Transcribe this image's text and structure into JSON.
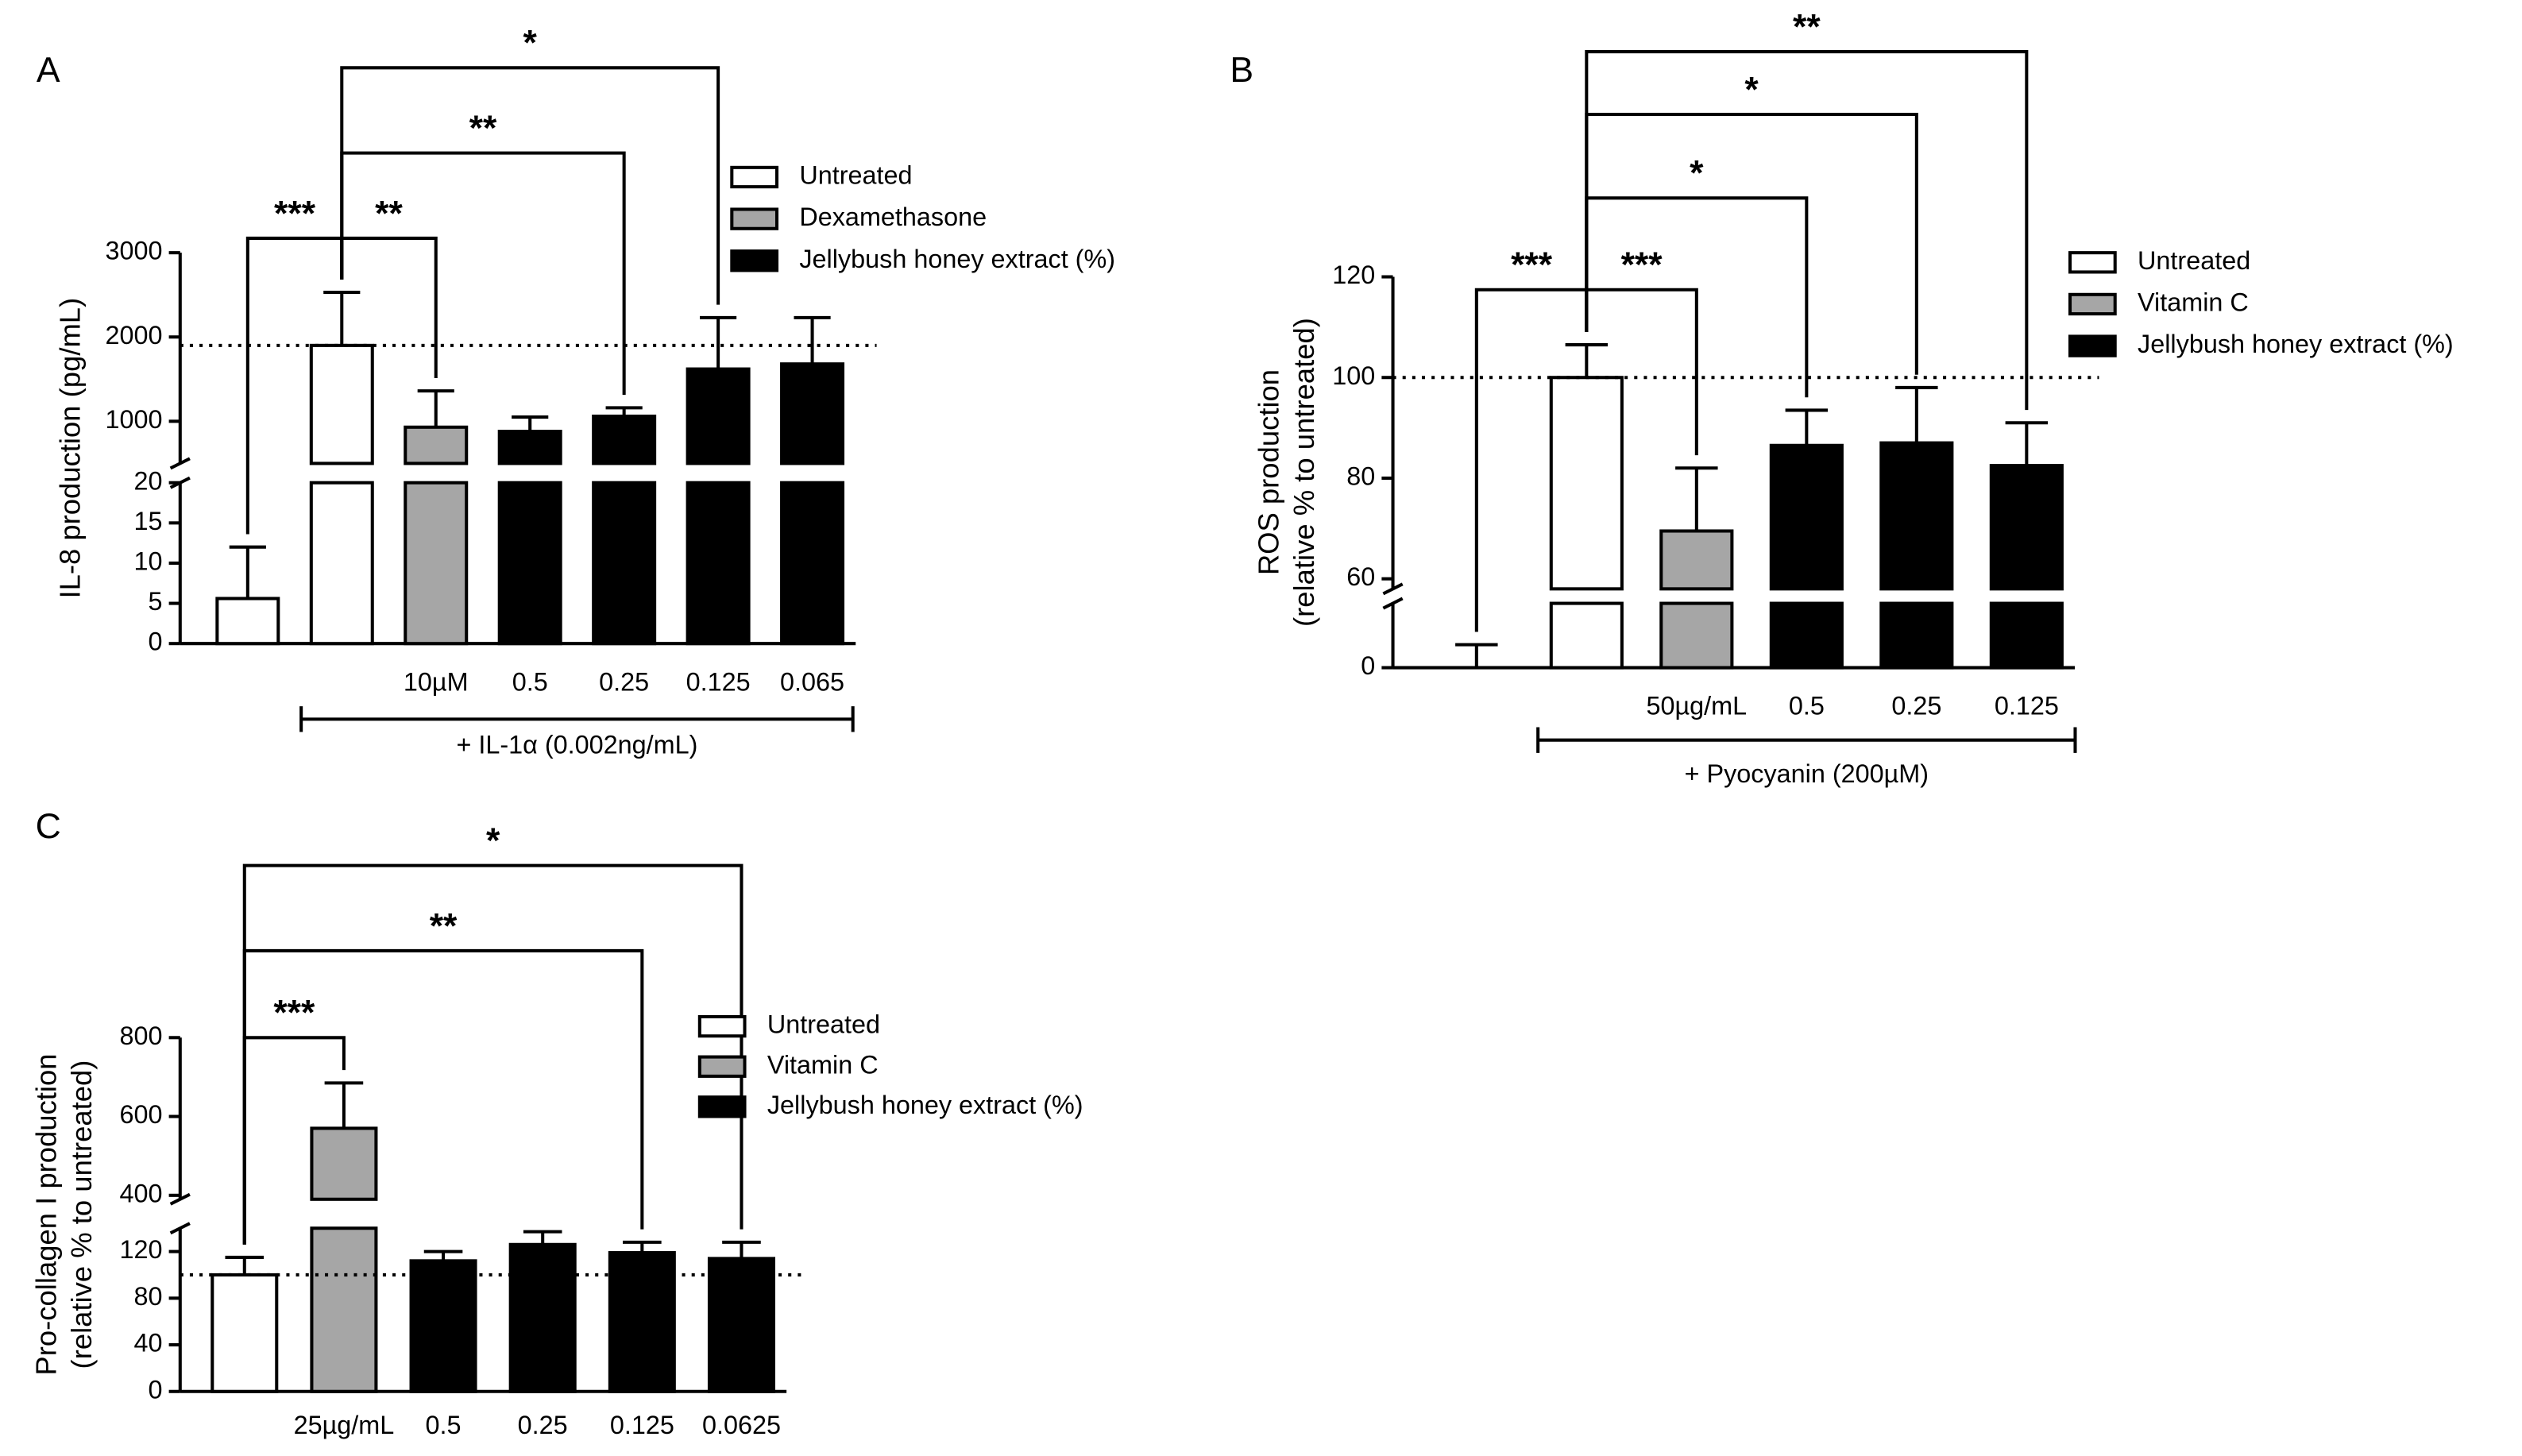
{
  "chart_data": [
    {
      "type": "bar",
      "panel": "A",
      "ylabel": [
        "IL-8 production (pg/mL)"
      ],
      "categories": [
        null,
        null,
        "10µM",
        "0.5",
        "0.25",
        "0.125",
        "0.065"
      ],
      "values": [
        5.6,
        1900,
        930,
        880,
        1060,
        1620,
        1680
      ],
      "errors": [
        6.4,
        630,
        430,
        170,
        100,
        610,
        550
      ],
      "colors": [
        "#ffffff",
        "#ffffff",
        "#a6a6a6",
        "#000000",
        "#000000",
        "#000000",
        "#000000"
      ],
      "legend": [
        {
          "name": "Untreated",
          "color": "#ffffff"
        },
        {
          "name": "Dexamethasone",
          "color": "#a6a6a6"
        },
        {
          "name": "Jellybush honey extract (%)",
          "color": "#000000"
        }
      ],
      "segments": [
        {
          "ylim": [
            0,
            20
          ],
          "yticks": [
            0,
            5,
            10,
            15,
            20
          ]
        },
        {
          "ylim": [
            500,
            3000
          ],
          "yticks": [
            1000,
            2000,
            3000
          ]
        }
      ],
      "reference_line": 1900,
      "comparisons": [
        {
          "from": 1,
          "to": 0,
          "label": "***"
        },
        {
          "from": 1,
          "to": 2,
          "label": "**"
        },
        {
          "from": 1,
          "to": 4,
          "label": "**"
        },
        {
          "from": 1,
          "to": 5,
          "label": "*"
        }
      ],
      "group_label": {
        "text": "+ IL-1α (0.002ng/mL)",
        "from": 1,
        "to": 6
      }
    },
    {
      "type": "bar",
      "panel": "B",
      "ylabel": [
        "ROS production",
        "(relative % to untreated)"
      ],
      "categories": [
        null,
        null,
        "50µg/mL",
        "0.5",
        "0.25",
        "0.125"
      ],
      "values": [
        0,
        100,
        69.5,
        86.5,
        87,
        82.5
      ],
      "errors": [
        5,
        6.5,
        12.5,
        7,
        11,
        8.5
      ],
      "colors": [
        "#ffffff",
        "#ffffff",
        "#a6a6a6",
        "#000000",
        "#000000",
        "#000000"
      ],
      "legend": [
        {
          "name": "Untreated",
          "color": "#ffffff"
        },
        {
          "name": "Vitamin C",
          "color": "#a6a6a6"
        },
        {
          "name": "Jellybush honey extract (%)",
          "color": "#000000"
        }
      ],
      "segments": [
        {
          "ylim": [
            0,
            14
          ],
          "yticks": [
            0
          ]
        },
        {
          "ylim": [
            58,
            120
          ],
          "yticks": [
            60,
            80,
            100,
            120
          ]
        }
      ],
      "reference_line": 100,
      "comparisons": [
        {
          "from": 1,
          "to": 0,
          "label": "***"
        },
        {
          "from": 1,
          "to": 2,
          "label": "***"
        },
        {
          "from": 1,
          "to": 3,
          "label": "*"
        },
        {
          "from": 1,
          "to": 4,
          "label": "*"
        },
        {
          "from": 1,
          "to": 5,
          "label": "**"
        }
      ],
      "group_label": {
        "text": "+ Pyocyanin (200µM)",
        "from": 1,
        "to": 5
      }
    },
    {
      "type": "bar",
      "panel": "C",
      "ylabel": [
        "Pro-collagen I production",
        "(relative % to untreated)"
      ],
      "categories": [
        null,
        "25µg/mL",
        "0.5",
        "0.25",
        "0.125",
        "0.0625"
      ],
      "values": [
        100,
        570,
        112,
        126,
        119,
        114
      ],
      "errors": [
        15,
        115,
        8,
        11,
        9,
        14
      ],
      "colors": [
        "#ffffff",
        "#a6a6a6",
        "#000000",
        "#000000",
        "#000000",
        "#000000"
      ],
      "legend": [
        {
          "name": "Untreated",
          "color": "#ffffff"
        },
        {
          "name": "Vitamin C",
          "color": "#a6a6a6"
        },
        {
          "name": "Jellybush honey extract (%)",
          "color": "#000000"
        }
      ],
      "segments": [
        {
          "ylim": [
            0,
            140
          ],
          "yticks": [
            0,
            40,
            80,
            120
          ]
        },
        {
          "ylim": [
            390,
            800
          ],
          "yticks": [
            400,
            600,
            800
          ]
        }
      ],
      "reference_line": 100,
      "comparisons": [
        {
          "from": 0,
          "to": 1,
          "label": "***"
        },
        {
          "from": 0,
          "to": 4,
          "label": "**"
        },
        {
          "from": 0,
          "to": 5,
          "label": "*"
        }
      ]
    }
  ]
}
